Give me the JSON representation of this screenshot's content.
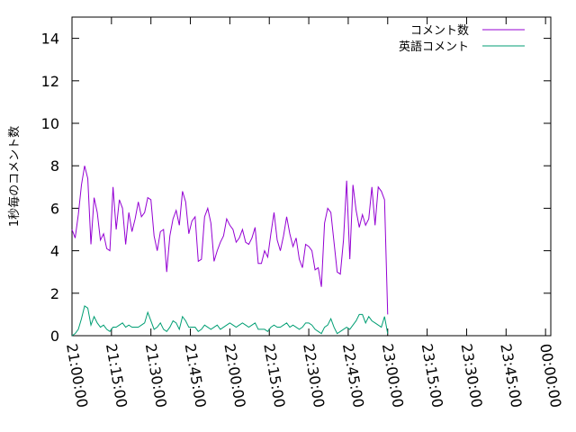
{
  "chart_data": {
    "type": "line",
    "title": "",
    "xlabel": "",
    "ylabel": "1秒毎のコメント数",
    "ylim": [
      0,
      15
    ],
    "yticks": [
      0,
      2,
      4,
      6,
      8,
      10,
      12,
      14
    ],
    "xlim_minutes": [
      0,
      182
    ],
    "xticks": [
      {
        "minute": 0,
        "label": "21:00:00"
      },
      {
        "minute": 15,
        "label": "21:15:00"
      },
      {
        "minute": 30,
        "label": "21:30:00"
      },
      {
        "minute": 45,
        "label": "21:45:00"
      },
      {
        "minute": 60,
        "label": "22:00:00"
      },
      {
        "minute": 75,
        "label": "22:15:00"
      },
      {
        "minute": 90,
        "label": "22:30:00"
      },
      {
        "minute": 105,
        "label": "22:45:00"
      },
      {
        "minute": 120,
        "label": "23:00:00"
      },
      {
        "minute": 135,
        "label": "23:15:00"
      },
      {
        "minute": 150,
        "label": "23:30:00"
      },
      {
        "minute": 165,
        "label": "23:45:00"
      },
      {
        "minute": 180,
        "label": "00:00:00"
      }
    ],
    "grid": false,
    "legend_position": "top-right",
    "series": [
      {
        "name": "コメント数",
        "color": "#9400d3",
        "points": [
          [
            0,
            5.0
          ],
          [
            1.2,
            4.6
          ],
          [
            2.4,
            5.7
          ],
          [
            3.6,
            7.1
          ],
          [
            4.8,
            8.0
          ],
          [
            6,
            7.4
          ],
          [
            7.2,
            4.3
          ],
          [
            8.4,
            6.5
          ],
          [
            9.6,
            5.8
          ],
          [
            10.8,
            4.5
          ],
          [
            12,
            4.8
          ],
          [
            13.2,
            4.1
          ],
          [
            14.4,
            4.0
          ],
          [
            15.6,
            7.0
          ],
          [
            16.8,
            5.0
          ],
          [
            18,
            6.4
          ],
          [
            19.2,
            6.0
          ],
          [
            20.4,
            4.3
          ],
          [
            21.6,
            5.8
          ],
          [
            22.8,
            4.9
          ],
          [
            24,
            5.5
          ],
          [
            25.2,
            6.3
          ],
          [
            26.4,
            5.6
          ],
          [
            27.6,
            5.8
          ],
          [
            28.8,
            6.5
          ],
          [
            30,
            6.4
          ],
          [
            31.2,
            4.7
          ],
          [
            32.4,
            4.0
          ],
          [
            33.6,
            4.9
          ],
          [
            34.8,
            5.0
          ],
          [
            36,
            3.0
          ],
          [
            37.2,
            4.7
          ],
          [
            38.4,
            5.5
          ],
          [
            39.6,
            5.9
          ],
          [
            40.8,
            5.2
          ],
          [
            42,
            6.8
          ],
          [
            43.2,
            6.3
          ],
          [
            44.4,
            4.8
          ],
          [
            45.6,
            5.4
          ],
          [
            46.8,
            5.6
          ],
          [
            48,
            3.5
          ],
          [
            49.2,
            3.6
          ],
          [
            50.4,
            5.6
          ],
          [
            51.6,
            6.0
          ],
          [
            52.8,
            5.3
          ],
          [
            54,
            3.5
          ],
          [
            55.2,
            4.0
          ],
          [
            56.4,
            4.4
          ],
          [
            57.6,
            4.7
          ],
          [
            58.8,
            5.5
          ],
          [
            60,
            5.2
          ],
          [
            61.2,
            5.0
          ],
          [
            62.4,
            4.4
          ],
          [
            63.6,
            4.6
          ],
          [
            64.8,
            5.0
          ],
          [
            66,
            4.4
          ],
          [
            67.2,
            4.3
          ],
          [
            68.4,
            4.6
          ],
          [
            69.6,
            5.1
          ],
          [
            70.8,
            3.4
          ],
          [
            72,
            3.4
          ],
          [
            73.2,
            4.0
          ],
          [
            74.4,
            3.7
          ],
          [
            75.6,
            4.8
          ],
          [
            76.8,
            5.8
          ],
          [
            78,
            4.5
          ],
          [
            79.2,
            4.0
          ],
          [
            80.4,
            4.7
          ],
          [
            81.6,
            5.6
          ],
          [
            82.8,
            4.8
          ],
          [
            84,
            4.2
          ],
          [
            85.2,
            4.6
          ],
          [
            86.4,
            3.6
          ],
          [
            87.6,
            3.2
          ],
          [
            88.8,
            4.3
          ],
          [
            90,
            4.2
          ],
          [
            91.2,
            4.0
          ],
          [
            92.4,
            3.1
          ],
          [
            93.6,
            3.2
          ],
          [
            94.8,
            2.3
          ],
          [
            96,
            5.3
          ],
          [
            97.2,
            6.0
          ],
          [
            98.4,
            5.8
          ],
          [
            99.6,
            4.4
          ],
          [
            100.8,
            3.0
          ],
          [
            102,
            2.9
          ],
          [
            103.2,
            4.5
          ],
          [
            104.4,
            7.3
          ],
          [
            105.6,
            3.6
          ],
          [
            106.8,
            7.1
          ],
          [
            108,
            5.9
          ],
          [
            109.2,
            5.1
          ],
          [
            110.4,
            5.7
          ],
          [
            111.6,
            5.2
          ],
          [
            112.8,
            5.5
          ],
          [
            114,
            7.0
          ],
          [
            115.2,
            5.2
          ],
          [
            116.4,
            7.0
          ],
          [
            117.6,
            6.8
          ],
          [
            118.8,
            6.4
          ],
          [
            120,
            1.0
          ]
        ]
      },
      {
        "name": "英語コメント",
        "color": "#009e73",
        "points": [
          [
            0,
            0.0
          ],
          [
            1.2,
            0.1
          ],
          [
            2.4,
            0.3
          ],
          [
            3.6,
            0.8
          ],
          [
            4.8,
            1.4
          ],
          [
            6,
            1.3
          ],
          [
            7.2,
            0.5
          ],
          [
            8.4,
            0.9
          ],
          [
            9.6,
            0.6
          ],
          [
            10.8,
            0.4
          ],
          [
            12,
            0.5
          ],
          [
            13.2,
            0.3
          ],
          [
            14.4,
            0.2
          ],
          [
            15.6,
            0.4
          ],
          [
            16.8,
            0.4
          ],
          [
            18,
            0.5
          ],
          [
            19.2,
            0.6
          ],
          [
            20.4,
            0.4
          ],
          [
            21.6,
            0.5
          ],
          [
            22.8,
            0.4
          ],
          [
            24,
            0.4
          ],
          [
            25.2,
            0.4
          ],
          [
            26.4,
            0.5
          ],
          [
            27.6,
            0.6
          ],
          [
            28.8,
            1.1
          ],
          [
            30,
            0.7
          ],
          [
            31.2,
            0.3
          ],
          [
            32.4,
            0.4
          ],
          [
            33.6,
            0.6
          ],
          [
            34.8,
            0.3
          ],
          [
            36,
            0.2
          ],
          [
            37.2,
            0.4
          ],
          [
            38.4,
            0.7
          ],
          [
            39.6,
            0.6
          ],
          [
            40.8,
            0.3
          ],
          [
            42,
            0.9
          ],
          [
            43.2,
            0.7
          ],
          [
            44.4,
            0.4
          ],
          [
            45.6,
            0.4
          ],
          [
            46.8,
            0.4
          ],
          [
            48,
            0.2
          ],
          [
            49.2,
            0.3
          ],
          [
            50.4,
            0.5
          ],
          [
            51.6,
            0.4
          ],
          [
            52.8,
            0.3
          ],
          [
            54,
            0.4
          ],
          [
            55.2,
            0.5
          ],
          [
            56.4,
            0.3
          ],
          [
            57.6,
            0.4
          ],
          [
            58.8,
            0.5
          ],
          [
            60,
            0.6
          ],
          [
            61.2,
            0.5
          ],
          [
            62.4,
            0.4
          ],
          [
            63.6,
            0.5
          ],
          [
            64.8,
            0.6
          ],
          [
            66,
            0.5
          ],
          [
            67.2,
            0.4
          ],
          [
            68.4,
            0.5
          ],
          [
            69.6,
            0.6
          ],
          [
            70.8,
            0.3
          ],
          [
            72,
            0.3
          ],
          [
            73.2,
            0.3
          ],
          [
            74.4,
            0.2
          ],
          [
            75.6,
            0.4
          ],
          [
            76.8,
            0.5
          ],
          [
            78,
            0.4
          ],
          [
            79.2,
            0.4
          ],
          [
            80.4,
            0.5
          ],
          [
            81.6,
            0.6
          ],
          [
            82.8,
            0.4
          ],
          [
            84,
            0.5
          ],
          [
            85.2,
            0.4
          ],
          [
            86.4,
            0.3
          ],
          [
            87.6,
            0.4
          ],
          [
            88.8,
            0.6
          ],
          [
            90,
            0.6
          ],
          [
            91.2,
            0.5
          ],
          [
            92.4,
            0.3
          ],
          [
            93.6,
            0.2
          ],
          [
            94.8,
            0.1
          ],
          [
            96,
            0.4
          ],
          [
            97.2,
            0.5
          ],
          [
            98.4,
            0.8
          ],
          [
            99.6,
            0.4
          ],
          [
            100.8,
            0.1
          ],
          [
            102,
            0.2
          ],
          [
            103.2,
            0.3
          ],
          [
            104.4,
            0.4
          ],
          [
            105.6,
            0.3
          ],
          [
            106.8,
            0.5
          ],
          [
            108,
            0.7
          ],
          [
            109.2,
            1.0
          ],
          [
            110.4,
            1.0
          ],
          [
            111.6,
            0.6
          ],
          [
            112.8,
            0.9
          ],
          [
            114,
            0.7
          ],
          [
            115.2,
            0.6
          ],
          [
            116.4,
            0.5
          ],
          [
            117.6,
            0.4
          ],
          [
            118.8,
            0.9
          ],
          [
            120,
            0.1
          ]
        ]
      }
    ]
  }
}
